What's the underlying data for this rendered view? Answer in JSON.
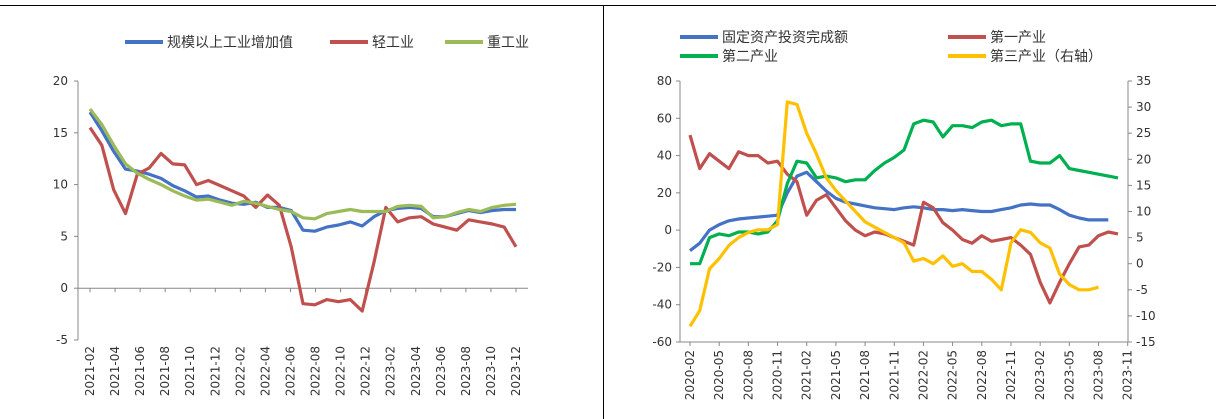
{
  "chart_data": [
    {
      "type": "line",
      "title": "",
      "xlabel": "",
      "ylabel": "",
      "ylim": [
        -5,
        20
      ],
      "yticks": [
        "20",
        "15",
        "10",
        "5",
        "0",
        "-5"
      ],
      "x_tick_labels": [
        "2021-02",
        "2021-04",
        "2021-06",
        "2021-08",
        "2021-10",
        "2021-12",
        "2022-02",
        "2022-04",
        "2022-06",
        "2022-08",
        "2022-10",
        "2022-12",
        "2023-02",
        "2023-04",
        "2023-06",
        "2023-08",
        "2023-10",
        "2023-12"
      ],
      "legend_position": "top",
      "series": [
        {
          "name": "规模以上工业增加值",
          "color": "#4472C4",
          "values": [
            17.0,
            15.2,
            13.2,
            11.5,
            11.3,
            11.0,
            10.6,
            9.9,
            9.4,
            8.8,
            8.9,
            8.5,
            8.2,
            8.1,
            8.3,
            7.8,
            7.8,
            7.5,
            5.6,
            5.5,
            5.9,
            6.1,
            6.4,
            6.0,
            6.9,
            7.5,
            7.7,
            7.8,
            7.7,
            6.9,
            6.9,
            7.2,
            7.5,
            7.3,
            7.5,
            7.6,
            7.6
          ]
        },
        {
          "name": "轻工业",
          "color": "#C0504D",
          "values": [
            15.5,
            13.8,
            9.5,
            7.2,
            11.0,
            11.6,
            13.0,
            12.0,
            11.9,
            10.0,
            10.4,
            9.9,
            9.4,
            8.9,
            7.8,
            9.0,
            8.0,
            4.0,
            -1.5,
            -1.6,
            -1.1,
            -1.3,
            -1.1,
            -2.2,
            2.5,
            7.8,
            6.4,
            6.8,
            6.9,
            6.2,
            5.9,
            5.6,
            6.6,
            6.4,
            6.2,
            5.9,
            4.0
          ]
        },
        {
          "name": "重工业",
          "color": "#9BBB59",
          "values": [
            17.3,
            15.8,
            13.8,
            12.0,
            11.1,
            10.5,
            10.0,
            9.4,
            8.9,
            8.5,
            8.6,
            8.3,
            8.0,
            8.4,
            8.2,
            7.9,
            7.6,
            7.4,
            6.8,
            6.7,
            7.2,
            7.4,
            7.6,
            7.4,
            7.4,
            7.4,
            7.9,
            8.0,
            7.9,
            6.8,
            6.9,
            7.3,
            7.6,
            7.4,
            7.8,
            8.0,
            8.1
          ]
        }
      ]
    },
    {
      "type": "line",
      "title": "",
      "xlabel": "",
      "ylabel": "",
      "y2label": "",
      "ylim": [
        -60,
        80
      ],
      "y2lim": [
        -15,
        35
      ],
      "yticks": [
        "80",
        "60",
        "40",
        "20",
        "0",
        "-20",
        "-40",
        "-60"
      ],
      "y2ticks": [
        "35",
        "30",
        "25",
        "20",
        "15",
        "10",
        "5",
        "0",
        "-5",
        "-10",
        "-15"
      ],
      "x_tick_labels": [
        "2020-02",
        "2020-05",
        "2020-08",
        "2020-11",
        "2021-02",
        "2021-05",
        "2021-08",
        "2021-11",
        "2022-02",
        "2022-05",
        "2022-08",
        "2022-11",
        "2023-02",
        "2023-05",
        "2023-08",
        "2023-11"
      ],
      "legend_position": "top",
      "series": [
        {
          "name": "固定资产投资完成额",
          "axis": "left",
          "color": "#4472C4",
          "values": [
            -11,
            -7,
            0,
            3,
            5,
            6,
            6.5,
            7,
            7.5,
            8,
            20,
            29,
            31,
            26,
            21,
            17,
            15,
            14,
            13,
            12,
            11.5,
            11,
            12,
            12.5,
            12,
            11,
            11,
            10.5,
            11,
            10.5,
            10,
            10,
            11,
            12,
            13.5,
            14,
            13.5,
            13.5,
            11,
            8,
            6.5,
            5.5,
            5.5,
            5.5
          ]
        },
        {
          "name": "第一产业",
          "axis": "left",
          "color": "#C0504D",
          "values": [
            51,
            33,
            41,
            37,
            33,
            42,
            40,
            40,
            36,
            37,
            30,
            26,
            8,
            16,
            19,
            12,
            5,
            0,
            -3,
            -1,
            -2,
            -4,
            -6,
            -8,
            15,
            12,
            4,
            0,
            -5,
            -7,
            -3,
            -6,
            -5,
            -4,
            -8,
            -13,
            -28,
            -39,
            -28,
            -18,
            -9,
            -8,
            -3,
            -1,
            -2
          ]
        },
        {
          "name": "第二产业",
          "axis": "left",
          "color": "#00B050",
          "values": [
            -18,
            -18,
            -4,
            -2,
            -3,
            -1,
            -1,
            -2,
            -1,
            5,
            25,
            37,
            36,
            28,
            29,
            28,
            26,
            27,
            27,
            32,
            36,
            39,
            43,
            57,
            59,
            58,
            50,
            56,
            56,
            55,
            58,
            59,
            56,
            57,
            57,
            37,
            36,
            36,
            40,
            33,
            32,
            31,
            30,
            29,
            28
          ]
        },
        {
          "name": "第三产业（右轴）",
          "axis": "right",
          "color": "#FFC000",
          "values": [
            -12,
            -9,
            -1,
            1,
            3.5,
            5,
            6,
            6.5,
            6.5,
            7.5,
            31,
            30.5,
            25,
            21,
            16.5,
            14,
            12,
            10,
            8,
            7,
            6,
            5,
            4,
            0.5,
            1,
            0,
            1.5,
            -0.5,
            0,
            -1.5,
            -1.5,
            -3,
            -5,
            4,
            6.5,
            6,
            4,
            3,
            -2,
            -4,
            -5,
            -5,
            -4.5
          ]
        }
      ]
    }
  ]
}
